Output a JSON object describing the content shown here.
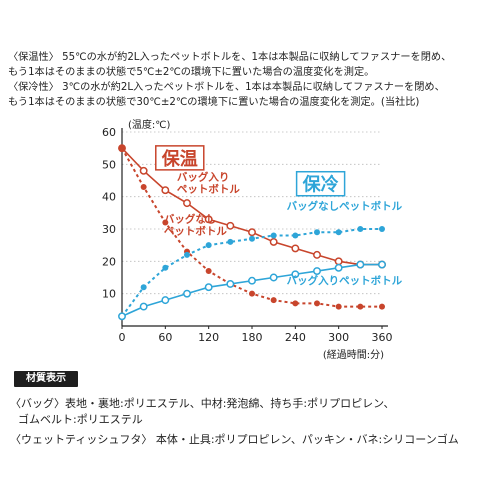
{
  "notes": {
    "line1": "〈保温性〉 55℃の水が約2L入ったペットボトルを、1本は本製品に収納してファスナーを閉め、",
    "line2": "もう1本はそのままの状態で5℃±2℃の環境下に置いた場合の温度変化を測定。",
    "line3": "〈保冷性〉 3℃の水が約2L入ったペットボトルを、1本は本製品に収納してファスナーを閉め、",
    "line4": "もう1本はそのままの状態で30℃±2℃の環境下に置いた場合の温度変化を測定。(当社比)"
  },
  "colors": {
    "warm": "#c8452c",
    "cold": "#2ea5d8",
    "axis": "#222222",
    "grid": "#bbbbbb"
  },
  "chart_data": {
    "type": "line",
    "ylabel": "(温度:℃)",
    "xlabel": "(経過時間:分)",
    "x": [
      0,
      30,
      60,
      90,
      120,
      150,
      180,
      210,
      240,
      270,
      300,
      330,
      360
    ],
    "xticks": [
      0,
      60,
      120,
      180,
      240,
      300,
      360
    ],
    "yticks": [
      10,
      20,
      30,
      40,
      50,
      60
    ],
    "xlim": [
      0,
      360
    ],
    "ylim": [
      0,
      60
    ],
    "grid": "horizontal dotted",
    "group_labels": {
      "warm": "保温",
      "cold": "保冷"
    },
    "series": [
      {
        "name": "バッグ入りペットボトル",
        "group": "warm",
        "style": "solid",
        "values": [
          55,
          48,
          42,
          38,
          33,
          31,
          29,
          26,
          24,
          22,
          20,
          19,
          19
        ]
      },
      {
        "name": "バッグなしペットボトル",
        "group": "warm",
        "style": "dashed",
        "values": [
          55,
          43,
          32,
          23,
          17,
          13,
          10,
          8,
          7,
          7,
          6,
          6,
          6
        ]
      },
      {
        "name": "バッグなしペットボトル",
        "group": "cold",
        "style": "dashed",
        "values": [
          3,
          12,
          18,
          22,
          25,
          26,
          27,
          28,
          28,
          29,
          29,
          30,
          30
        ]
      },
      {
        "name": "バッグ入りペットボトル",
        "group": "cold",
        "style": "solid",
        "values": [
          3,
          6,
          8,
          10,
          12,
          13,
          14,
          15,
          16,
          17,
          18,
          19,
          19
        ]
      }
    ],
    "labels": {
      "warm_bag": [
        "バッグ入り",
        "ペットボトル"
      ],
      "warm_nobag": [
        "バッグなし",
        "ペットボトル"
      ],
      "cold_nobag": "バッグなしペットボトル",
      "cold_bag": "バッグ入りペットボトル"
    }
  },
  "materials": {
    "heading": "材質表示",
    "bag_line1": "〈バッグ〉表地・裏地:ポリエステル、中材:発泡綿、持ち手:ポリプロピレン、",
    "bag_line2": "ゴムベルト:ポリエステル",
    "tissue_line": "〈ウェットティッシュフタ〉 本体・止具:ポリプロピレン、パッキン・バネ:シリコーンゴム"
  }
}
